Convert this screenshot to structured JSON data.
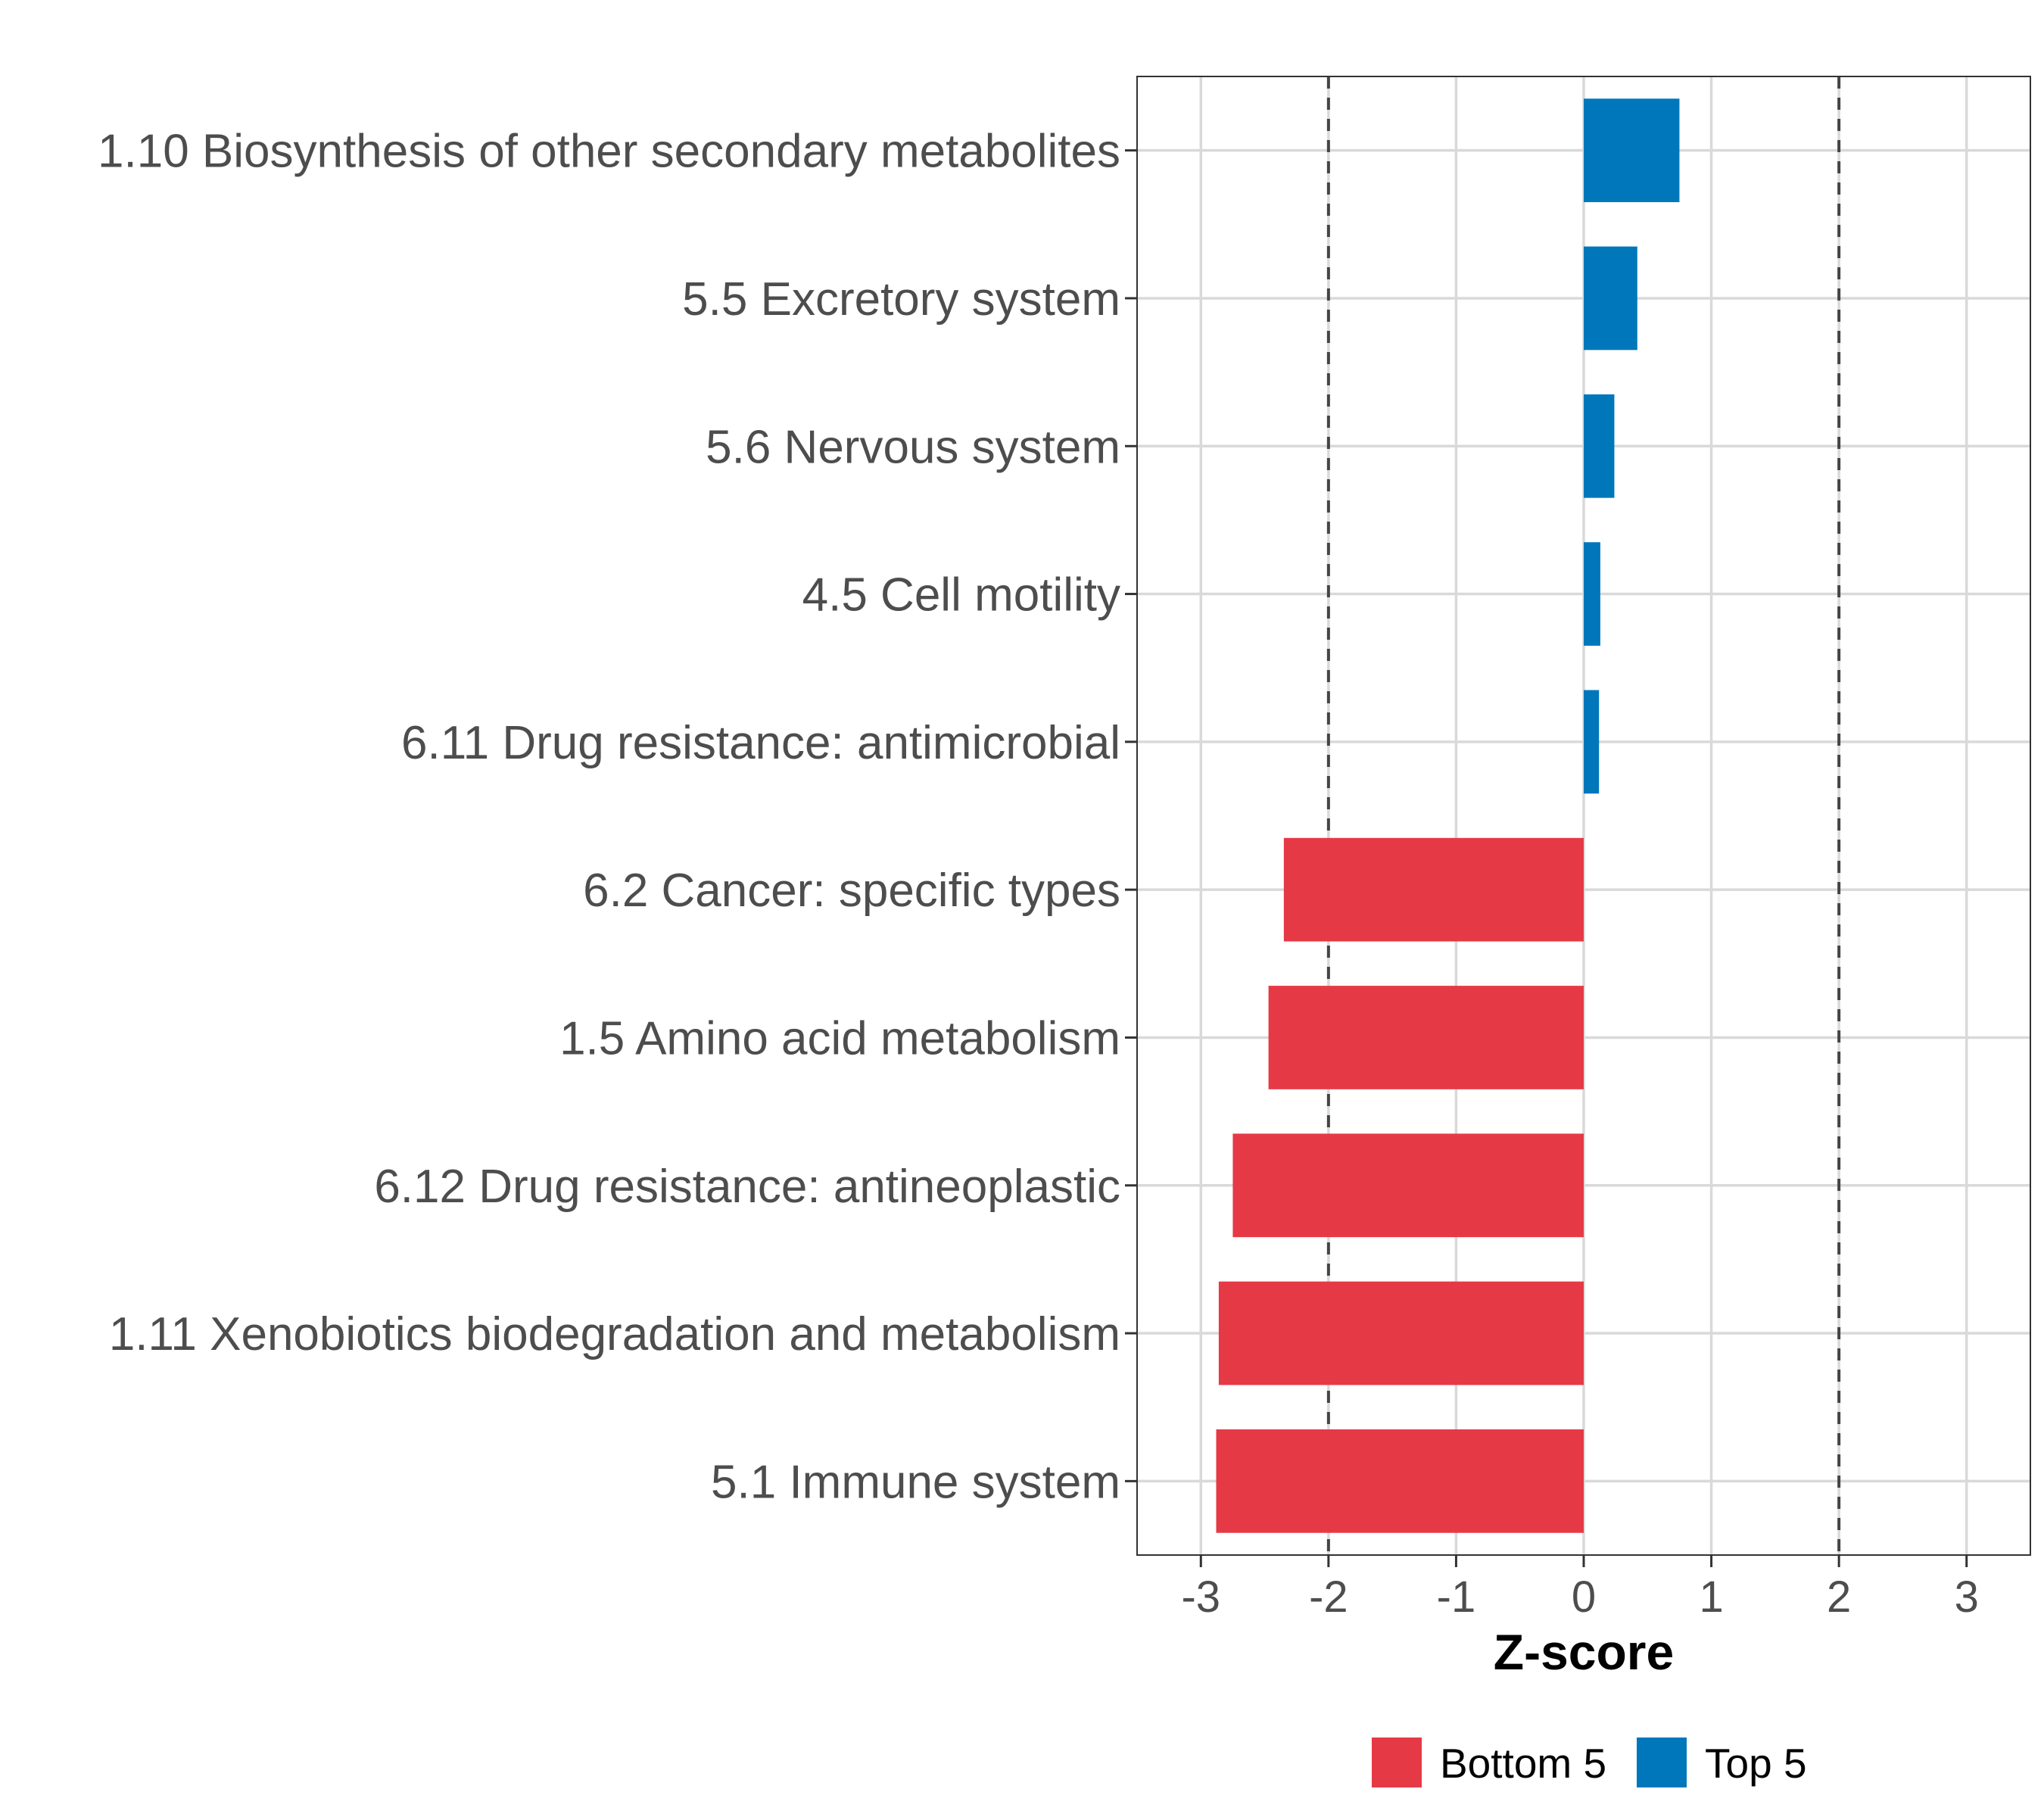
{
  "chart_data": {
    "type": "bar",
    "orientation": "horizontal",
    "xlabel": "Z-score",
    "xlim": [
      -3.5,
      3.5
    ],
    "xticks": [
      -3,
      -2,
      -1,
      0,
      1,
      2,
      3
    ],
    "reference_lines": [
      -2,
      2
    ],
    "grid": true,
    "legend_position": "bottom",
    "categories": [
      "1.10 Biosynthesis of other secondary metabolites",
      "5.5 Excretory system",
      "5.6 Nervous system",
      "4.5 Cell motility",
      "6.11 Drug resistance: antimicrobial",
      "6.2 Cancer: specific types",
      "1.5 Amino acid metabolism",
      "6.12 Drug resistance: antineoplastic",
      "1.11 Xenobiotics biodegradation and metabolism",
      "5.1 Immune system"
    ],
    "values": [
      0.75,
      0.42,
      0.24,
      0.13,
      0.12,
      -2.35,
      -2.47,
      -2.75,
      -2.86,
      -2.88
    ],
    "groups": [
      "Top 5",
      "Top 5",
      "Top 5",
      "Top 5",
      "Top 5",
      "Bottom 5",
      "Bottom 5",
      "Bottom 5",
      "Bottom 5",
      "Bottom 5"
    ],
    "legend": [
      {
        "name": "Bottom 5",
        "color": "#E63946"
      },
      {
        "name": "Top 5",
        "color": "#0077BB"
      }
    ]
  }
}
